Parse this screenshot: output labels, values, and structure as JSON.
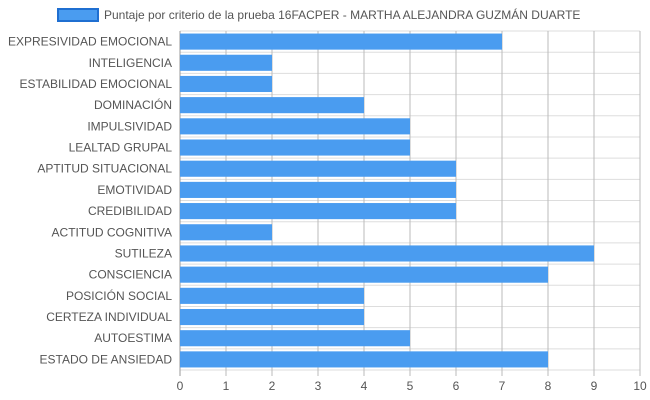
{
  "chart_data": {
    "type": "bar",
    "orientation": "horizontal",
    "categories": [
      "EXPRESIVIDAD EMOCIONAL",
      "INTELIGENCIA",
      "ESTABILIDAD EMOCIONAL",
      "DOMINACIÓN",
      "IMPULSIVIDAD",
      "LEALTAD GRUPAL",
      "APTITUD SITUACIONAL",
      "EMOTIVIDAD",
      "CREDIBILIDAD",
      "ACTITUD COGNITIVA",
      "SUTILEZA",
      "CONSCIENCIA",
      "POSICIÓN SOCIAL",
      "CERTEZA INDIVIDUAL",
      "AUTOESTIMA",
      "ESTADO DE ANSIEDAD"
    ],
    "series": [
      {
        "name": "Puntaje por criterio de la prueba 16FACPER - MARTHA ALEJANDRA GUZMÁN DUARTE",
        "color": "#4a9cf0",
        "border_color": "#1f6fd1",
        "values": [
          7,
          2,
          2,
          4,
          5,
          5,
          6,
          6,
          6,
          2,
          9,
          8,
          4,
          4,
          5,
          8
        ]
      }
    ],
    "xlim": [
      0,
      10
    ],
    "xticks": [
      "0",
      "1",
      "2",
      "3",
      "4",
      "5",
      "6",
      "7",
      "8",
      "9",
      "10"
    ],
    "grid": true,
    "legend_position": "top",
    "grid_color": "#dddddd",
    "vgrid_color": "#bbbbbb"
  }
}
